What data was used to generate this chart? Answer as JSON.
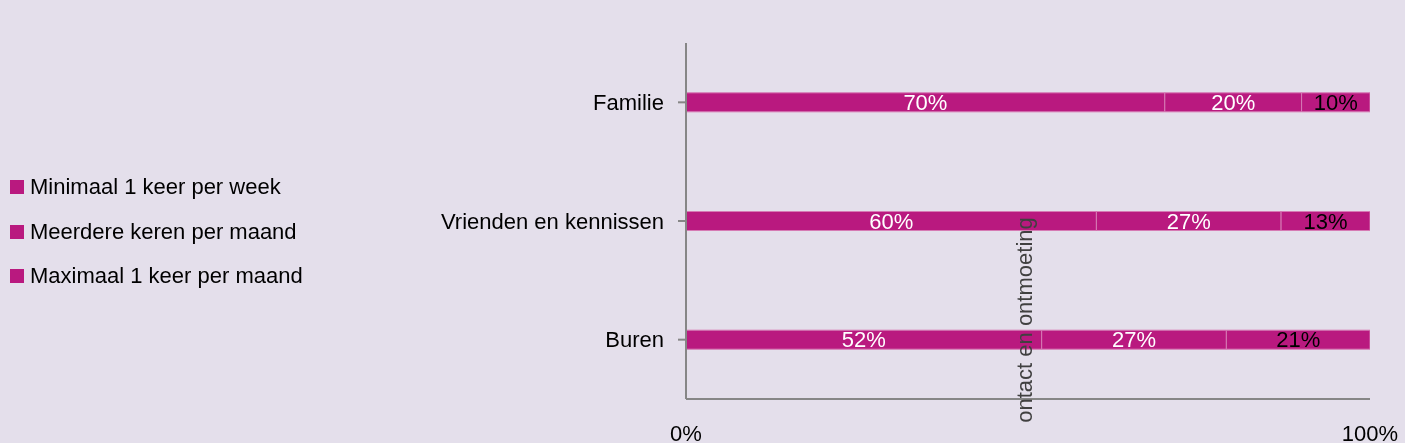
{
  "chart_data": {
    "type": "bar",
    "orientation": "horizontal",
    "stacked": true,
    "categories": [
      "Familie",
      "Vrienden en kennissen",
      "Buren"
    ],
    "series": [
      {
        "name": "Minimaal 1 keer per week",
        "color": "#b9197f",
        "values": [
          70,
          60,
          52
        ],
        "value_labels": [
          "70%",
          "60%",
          "52%"
        ]
      },
      {
        "name": "Meerdere keren per maand",
        "color": "#b9197f",
        "values": [
          20,
          27,
          27
        ],
        "value_labels": [
          "20%",
          "27%",
          "27%"
        ]
      },
      {
        "name": "Maximaal 1 keer per maand",
        "color": "#b9197f",
        "values": [
          10,
          13,
          21
        ],
        "value_labels": [
          "10%",
          "13%",
          "21%"
        ]
      }
    ],
    "xlim": [
      0,
      100
    ],
    "xticks": [
      {
        "value": 0,
        "label": "0%"
      },
      {
        "value": 100,
        "label": "100%"
      }
    ],
    "grid": false,
    "legend": "left",
    "annotations": [
      "ontact en ontmoeting"
    ]
  }
}
